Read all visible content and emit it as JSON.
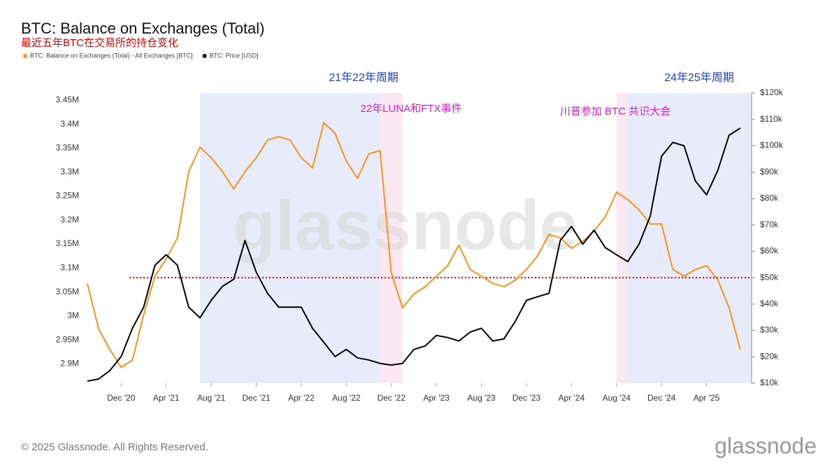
{
  "chart_data": {
    "type": "line",
    "title": "BTC: Balance on Exchanges (Total)",
    "subtitle": "最近五年BTC在交易所的持仓变化",
    "x": [
      "2020-09",
      "2020-10",
      "2020-11",
      "2020-12",
      "2021-01",
      "2021-02",
      "2021-03",
      "2021-04",
      "2021-05",
      "2021-06",
      "2021-07",
      "2021-08",
      "2021-09",
      "2021-10",
      "2021-11",
      "2021-12",
      "2022-01",
      "2022-02",
      "2022-03",
      "2022-04",
      "2022-05",
      "2022-06",
      "2022-07",
      "2022-08",
      "2022-09",
      "2022-10",
      "2022-11",
      "2022-12",
      "2023-01",
      "2023-02",
      "2023-03",
      "2023-04",
      "2023-05",
      "2023-06",
      "2023-07",
      "2023-08",
      "2023-09",
      "2023-10",
      "2023-11",
      "2023-12",
      "2024-01",
      "2024-02",
      "2024-03",
      "2024-04",
      "2024-05",
      "2024-06",
      "2024-07",
      "2024-08",
      "2024-09",
      "2024-10",
      "2024-11",
      "2024-12",
      "2025-01",
      "2025-02",
      "2025-03",
      "2025-04",
      "2025-05",
      "2025-06",
      "2025-07"
    ],
    "series": [
      {
        "name": "BTC: Balance on Exchanges (Total) - All Exchanges [BTC]",
        "color": "#f7931a",
        "values": [
          3068000,
          2973000,
          2930000,
          2893000,
          2908000,
          3003000,
          3083000,
          3119000,
          3163000,
          3301000,
          3352000,
          3330000,
          3301000,
          3265000,
          3301000,
          3330000,
          3367000,
          3374000,
          3367000,
          3330000,
          3309000,
          3403000,
          3381000,
          3323000,
          3287000,
          3338000,
          3345000,
          3090000,
          3017000,
          3046000,
          3061000,
          3083000,
          3105000,
          3148000,
          3097000,
          3083000,
          3068000,
          3061000,
          3075000,
          3097000,
          3126000,
          3170000,
          3163000,
          3141000,
          3156000,
          3177000,
          3207000,
          3258000,
          3243000,
          3221000,
          3192000,
          3192000,
          3097000,
          3083000,
          3097000,
          3105000,
          3075000,
          3017000,
          2930000
        ]
      },
      {
        "name": "BTC: Price [USD]",
        "color": "#000000",
        "axis": "y2",
        "values": [
          10800,
          11600,
          14800,
          20100,
          30800,
          38800,
          54700,
          58700,
          54700,
          38800,
          34800,
          41400,
          46700,
          49400,
          64100,
          52100,
          44100,
          38800,
          38800,
          38800,
          30800,
          25500,
          20100,
          22800,
          19600,
          18800,
          17500,
          16900,
          17500,
          22800,
          24100,
          28100,
          27300,
          26000,
          29400,
          30800,
          26000,
          26800,
          33400,
          41400,
          42800,
          44100,
          64100,
          69400,
          62700,
          68000,
          61400,
          58700,
          56100,
          62700,
          73400,
          96000,
          101300,
          100000,
          86700,
          81400,
          90700,
          104000,
          106700
        ]
      }
    ],
    "xlim": [
      "2020-09",
      "2025-08"
    ],
    "xticks": [
      {
        "value": "2020-12",
        "label": "Dec '20"
      },
      {
        "value": "2021-04",
        "label": "Apr '21"
      },
      {
        "value": "2021-08",
        "label": "Aug '21"
      },
      {
        "value": "2021-12",
        "label": "Dec '21"
      },
      {
        "value": "2022-04",
        "label": "Apr '22"
      },
      {
        "value": "2022-08",
        "label": "Aug '22"
      },
      {
        "value": "2022-12",
        "label": "Dec '22"
      },
      {
        "value": "2023-04",
        "label": "Apr '23"
      },
      {
        "value": "2023-08",
        "label": "Aug '23"
      },
      {
        "value": "2023-12",
        "label": "Dec '23"
      },
      {
        "value": "2024-04",
        "label": "Apr '24"
      },
      {
        "value": "2024-08",
        "label": "Aug '24"
      },
      {
        "value": "2024-12",
        "label": "Dec '24"
      },
      {
        "value": "2025-04",
        "label": "Apr '25"
      }
    ],
    "ylim": [
      2860000,
      3465000
    ],
    "yticks": [
      {
        "value": 2900000,
        "label": "2.9M"
      },
      {
        "value": 2950000,
        "label": "2.95M"
      },
      {
        "value": 3000000,
        "label": "3M"
      },
      {
        "value": 3050000,
        "label": "3.05M"
      },
      {
        "value": 3100000,
        "label": "3.1M"
      },
      {
        "value": 3150000,
        "label": "3.15M"
      },
      {
        "value": 3200000,
        "label": "3.2M"
      },
      {
        "value": 3250000,
        "label": "3.25M"
      },
      {
        "value": 3300000,
        "label": "3.3M"
      },
      {
        "value": 3350000,
        "label": "3.35M"
      },
      {
        "value": 3400000,
        "label": "3.4M"
      },
      {
        "value": 3450000,
        "label": "3.45M"
      }
    ],
    "y2lim": [
      10000,
      120000
    ],
    "y2ticks": [
      {
        "value": 10000,
        "label": "$10k"
      },
      {
        "value": 20000,
        "label": "$20k"
      },
      {
        "value": 30000,
        "label": "$30k"
      },
      {
        "value": 40000,
        "label": "$40k"
      },
      {
        "value": 50000,
        "label": "$50k"
      },
      {
        "value": 60000,
        "label": "$60k"
      },
      {
        "value": 70000,
        "label": "$70k"
      },
      {
        "value": 80000,
        "label": "$80k"
      },
      {
        "value": 90000,
        "label": "$90k"
      },
      {
        "value": 100000,
        "label": "$100k"
      },
      {
        "value": 110000,
        "label": "$110k"
      },
      {
        "value": 120000,
        "label": "$120k"
      }
    ],
    "reference_line": {
      "value": 50000,
      "axis": "y2",
      "color": "#cc0000"
    },
    "highlight_ranges": [
      {
        "start": "2021-07",
        "end": "2022-11",
        "color": "#e8ebfa"
      },
      {
        "start": "2022-11",
        "end": "2023-01",
        "color": "#fce8f2"
      },
      {
        "start": "2024-08",
        "end": "2024-09",
        "color": "#fce8f2"
      },
      {
        "start": "2024-09",
        "end": "2025-08",
        "color": "#e8ebfa"
      }
    ],
    "annotations": [
      {
        "text": "21年22年周期",
        "color": "#1f3fc4"
      },
      {
        "text": "22年LUNA和FTX事件",
        "color": "#d61fc8"
      },
      {
        "text": "川普参加 BTC 共识大会",
        "color": "#d61fc8"
      },
      {
        "text": "24年25年周期",
        "color": "#1f3fc4"
      }
    ],
    "watermark": "glassnode",
    "copyright": "© 2025 Glassnode. All Rights Reserved.",
    "logo": "glassnode"
  }
}
